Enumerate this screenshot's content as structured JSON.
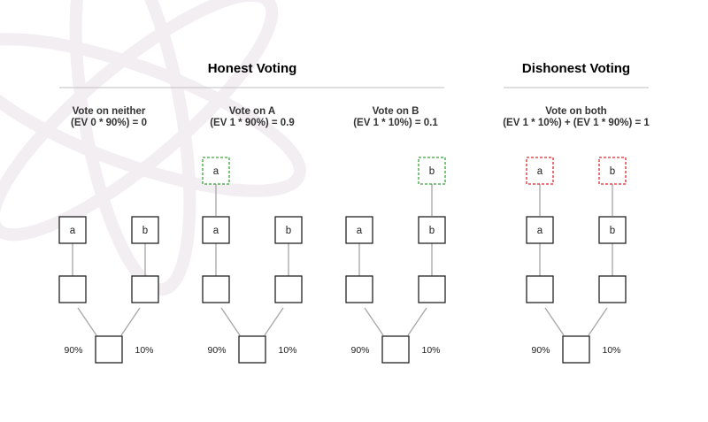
{
  "sections": {
    "honest": {
      "title": "Honest Voting"
    },
    "dishonest": {
      "title": "Dishonest Voting"
    }
  },
  "scenarios": [
    {
      "caption_line1": "Vote on neither",
      "caption_line2": "(EV 0 * 90%) = 0",
      "left_label": "a",
      "right_label": "b",
      "left_pct": "90%",
      "right_pct": "10%",
      "votes": []
    },
    {
      "caption_line1": "Vote on A",
      "caption_line2": "(EV 1 * 90%) = 0.9",
      "left_label": "a",
      "right_label": "b",
      "left_pct": "90%",
      "right_pct": "10%",
      "votes": [
        {
          "side": "left",
          "label": "a",
          "kind": "honest"
        }
      ]
    },
    {
      "caption_line1": "Vote on B",
      "caption_line2": "(EV 1 * 10%) = 0.1",
      "left_label": "a",
      "right_label": "b",
      "left_pct": "90%",
      "right_pct": "10%",
      "votes": [
        {
          "side": "right",
          "label": "b",
          "kind": "honest"
        }
      ]
    },
    {
      "caption_line1": "Vote on both",
      "caption_line2": "(EV 1 * 10%) + (EV 1 * 90%) = 1",
      "left_label": "a",
      "right_label": "b",
      "left_pct": "90%",
      "right_pct": "10%",
      "votes": [
        {
          "side": "left",
          "label": "a",
          "kind": "dishonest"
        },
        {
          "side": "right",
          "label": "b",
          "kind": "dishonest"
        }
      ]
    }
  ],
  "colors": {
    "honest_vote": "#3aa13a",
    "dishonest_vote": "#d9282f",
    "box_stroke": "#222222",
    "connector": "#aaaaaa",
    "divider": "#cccccc",
    "watermark": "#f2eef2"
  }
}
